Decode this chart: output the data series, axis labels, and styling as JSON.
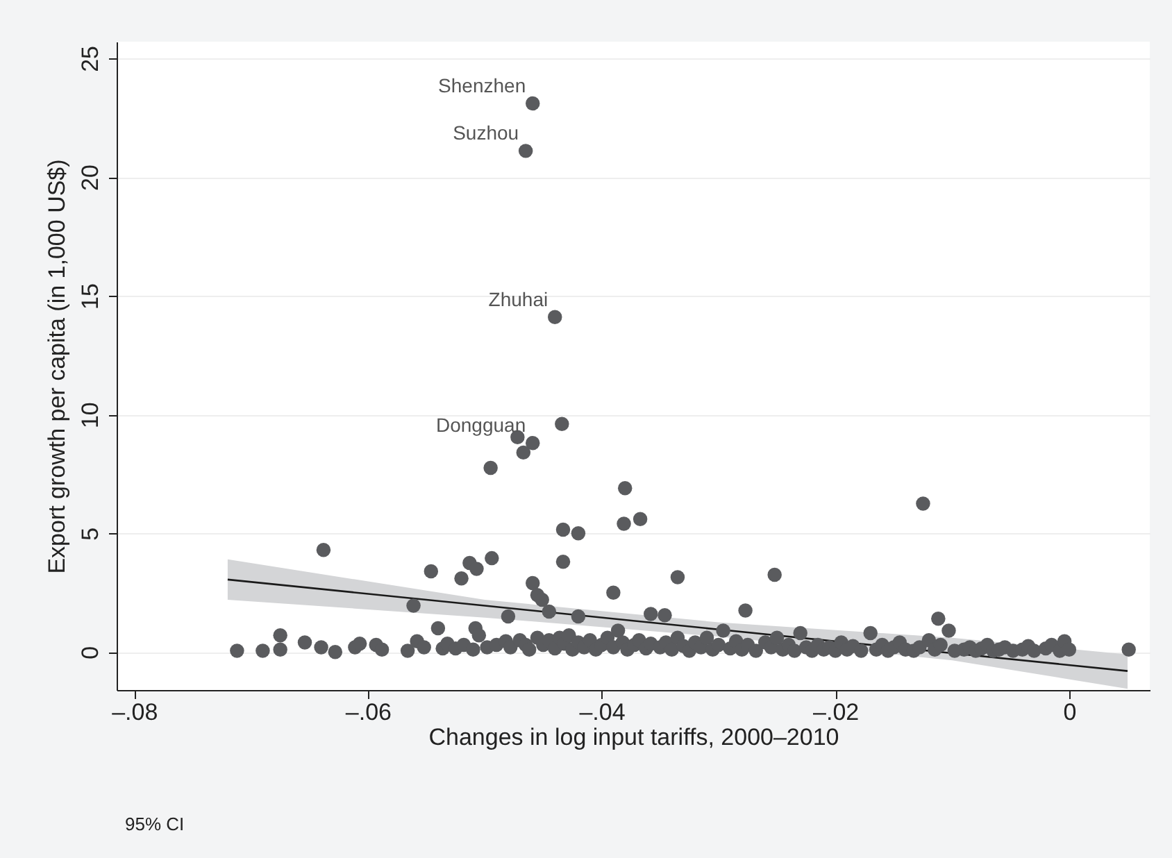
{
  "chart_data": {
    "type": "scatter",
    "xlabel": "Changes in log input tariffs, 2000–2010",
    "ylabel": "Export growth per capita (in 1,000 US$)",
    "xlim": [
      -0.0815,
      0.0069
    ],
    "ylim": [
      -1.6,
      25.7
    ],
    "xticks": [
      {
        "value": -0.08,
        "label": "–.08"
      },
      {
        "value": -0.06,
        "label": "–.06"
      },
      {
        "value": -0.04,
        "label": "–.04"
      },
      {
        "value": -0.02,
        "label": "–.02"
      },
      0
    ],
    "yticks": [
      0,
      5,
      10,
      15,
      20,
      25
    ],
    "grid": "y",
    "annotations": [
      {
        "text": "Shenzhen",
        "x": -0.0459,
        "y": 23.1
      },
      {
        "text": "Suzhou",
        "x": -0.0465,
        "y": 21.1
      },
      {
        "text": "Zhuhai",
        "x": -0.044,
        "y": 14.1
      },
      {
        "text": "Dongguan",
        "x": -0.0459,
        "y": 8.8
      },
      "95% CI"
    ],
    "series": [
      {
        "marker": "circle",
        "color": "#5a5b5e",
        "x": [
          -0.0459,
          -0.0465,
          -0.044,
          -0.0434,
          -0.0472,
          -0.0459,
          -0.0467,
          -0.0495,
          -0.038,
          -0.0125,
          -0.0367,
          -0.0381,
          -0.0433,
          -0.042,
          -0.0638,
          -0.0494,
          -0.0513,
          -0.0433,
          -0.0546,
          -0.0507,
          -0.0335,
          -0.0252,
          -0.052,
          -0.0459,
          -0.039,
          -0.0455,
          -0.0451,
          -0.0561,
          -0.0277,
          -0.0112,
          -0.0103,
          -0.0358,
          -0.0346,
          -0.048,
          -0.0445,
          -0.042,
          -0.0712,
          -0.069,
          -0.0675,
          -0.0675,
          -0.0654,
          -0.064,
          -0.0628,
          -0.0611,
          -0.0607,
          -0.0593,
          -0.0588,
          -0.0566,
          -0.0558,
          -0.0552,
          -0.054,
          -0.0536,
          -0.0532,
          -0.0525,
          -0.0518,
          -0.051,
          -0.0508,
          -0.0505,
          -0.0498,
          -0.049,
          -0.0482,
          -0.0478,
          -0.047,
          -0.0465,
          -0.0462,
          -0.0455,
          -0.045,
          -0.0445,
          -0.044,
          -0.0436,
          -0.0432,
          -0.0428,
          -0.0425,
          -0.042,
          -0.0415,
          -0.041,
          -0.0405,
          -0.04,
          -0.0395,
          -0.039,
          -0.0386,
          -0.0382,
          -0.0378,
          -0.0372,
          -0.0368,
          -0.0362,
          -0.0358,
          -0.035,
          -0.0345,
          -0.034,
          -0.0335,
          -0.033,
          -0.0325,
          -0.032,
          -0.0315,
          -0.031,
          -0.0305,
          -0.03,
          -0.0296,
          -0.029,
          -0.0285,
          -0.028,
          -0.0275,
          -0.0268,
          -0.026,
          -0.0255,
          -0.025,
          -0.0245,
          -0.024,
          -0.0235,
          -0.023,
          -0.0225,
          -0.022,
          -0.0215,
          -0.021,
          -0.0205,
          -0.02,
          -0.0195,
          -0.019,
          -0.0185,
          -0.0178,
          -0.017,
          -0.0165,
          -0.016,
          -0.0155,
          -0.015,
          -0.0145,
          -0.014,
          -0.0133,
          -0.0128,
          -0.012,
          -0.0115,
          -0.011,
          -0.0098,
          -0.009,
          -0.0085,
          -0.008,
          -0.0075,
          -0.007,
          -0.0065,
          -0.006,
          -0.0055,
          -0.0048,
          -0.004,
          -0.0035,
          -0.003,
          -0.002,
          -0.0015,
          -0.0008,
          -0.0004,
          0.0,
          0.0051
        ],
        "values": [
          23.1,
          21.1,
          14.1,
          9.6,
          9.05,
          8.8,
          8.4,
          7.75,
          6.9,
          6.25,
          5.6,
          5.4,
          5.15,
          5.0,
          4.3,
          3.95,
          3.75,
          3.8,
          3.4,
          3.5,
          3.15,
          3.25,
          3.1,
          2.9,
          2.5,
          2.4,
          2.2,
          1.95,
          1.75,
          1.4,
          0.9,
          1.6,
          1.55,
          1.5,
          1.7,
          1.5,
          0.05,
          0.05,
          0.7,
          0.1,
          0.4,
          0.2,
          0.0,
          0.2,
          0.35,
          0.3,
          0.1,
          0.05,
          0.45,
          0.2,
          1.0,
          0.15,
          0.35,
          0.15,
          0.3,
          0.1,
          1.0,
          0.7,
          0.2,
          0.3,
          0.45,
          0.2,
          0.5,
          0.3,
          0.1,
          0.6,
          0.3,
          0.5,
          0.15,
          0.6,
          0.35,
          0.7,
          0.1,
          0.4,
          0.2,
          0.5,
          0.1,
          0.3,
          0.6,
          0.2,
          0.9,
          0.4,
          0.1,
          0.3,
          0.5,
          0.15,
          0.35,
          0.2,
          0.4,
          0.1,
          0.6,
          0.25,
          0.05,
          0.4,
          0.2,
          0.6,
          0.1,
          0.3,
          0.9,
          0.15,
          0.45,
          0.1,
          0.3,
          0.05,
          0.4,
          0.2,
          0.6,
          0.1,
          0.3,
          0.05,
          0.8,
          0.2,
          0.05,
          0.3,
          0.1,
          0.2,
          0.05,
          0.4,
          0.1,
          0.25,
          0.05,
          0.8,
          0.1,
          0.3,
          0.05,
          0.2,
          0.4,
          0.1,
          0.05,
          0.2,
          0.5,
          0.1,
          0.3,
          0.05,
          0.1,
          0.2,
          0.05,
          0.15,
          0.3,
          0.05,
          0.1,
          0.2,
          0.05,
          0.1,
          0.25,
          0.05,
          0.15,
          0.3,
          0.05,
          0.45,
          0.1,
          0.1
        ]
      },
      {
        "type": "line",
        "color": "#1a1a1a",
        "x": [
          -0.072,
          -0.05,
          -0.03,
          -0.01,
          0.005
        ],
        "values": [
          3.05,
          1.95,
          0.95,
          -0.05,
          -0.8
        ],
        "lower": [
          2.2,
          1.45,
          0.65,
          -0.35,
          -1.55
        ],
        "upper": [
          3.9,
          2.2,
          1.25,
          0.6,
          -0.1
        ]
      }
    ]
  }
}
